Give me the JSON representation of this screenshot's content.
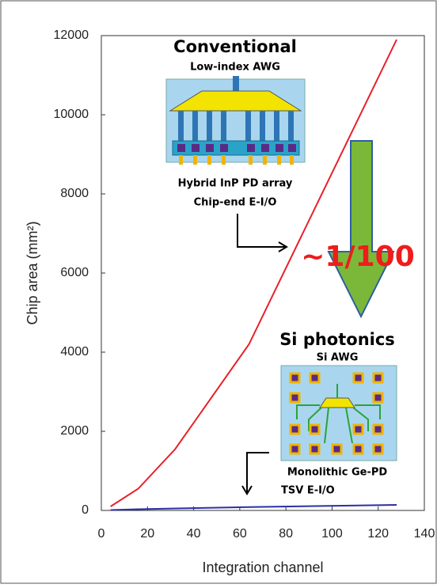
{
  "chart_data": {
    "type": "line",
    "x_label": "Integration channel",
    "y_label": "Chip area (mm²)",
    "x": [
      4,
      16,
      32,
      64,
      128
    ],
    "series": [
      {
        "color": "#e8202a",
        "values": [
          100,
          550,
          1550,
          4200,
          11900
        ]
      },
      {
        "color": "#2b2fa6",
        "values": [
          10,
          30,
          50,
          85,
          140
        ]
      }
    ],
    "xlim": [
      0,
      140
    ],
    "xticks": [
      0,
      20,
      40,
      60,
      80,
      100,
      120,
      140
    ],
    "ylim": [
      0,
      12000
    ],
    "yticks": [
      0,
      2000,
      4000,
      6000,
      8000,
      10000,
      12000
    ],
    "annotations": [
      "Conventional",
      "Low-index AWG",
      "Hybrid InP PD array",
      "Chip-end E-I/O",
      "~1/100",
      "Si photonics",
      "Si AWG",
      "Monolithic Ge-PD",
      "TSV E-I/O"
    ]
  }
}
